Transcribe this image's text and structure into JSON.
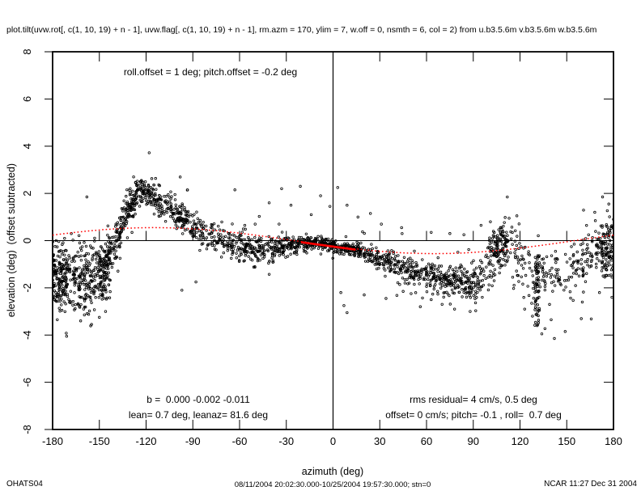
{
  "window": {
    "background": "#ffffff"
  },
  "footer": {
    "project_id": "OHATS04",
    "time_range": "08/11/2004 20:02:30.000-10/25/2004 19:57:30.000; stn=0",
    "credit": "NCAR 11:27 Dec 31 2004"
  },
  "chart_data": {
    "type": "scatter",
    "title": "plot.tilt(uvw.rot[, c(1, 10, 19) + n - 1], uvw.flag[, c(1, 10, 19) + n - 1], rm.azm = 170, ylim = 7, w.off = 0, nsmth = 6, col = 2) from u.b3.5.6m v.b3.5.6m w.b3.5.6m",
    "xlabel": "azimuth (deg)",
    "ylabel": "elevation (deg)  (offset subtracted)",
    "xlim": [
      -180,
      180
    ],
    "ylim": [
      -8,
      8
    ],
    "xticks": [
      -180,
      -150,
      -120,
      -90,
      -60,
      -30,
      0,
      30,
      60,
      90,
      120,
      150,
      180
    ],
    "yticks": [
      -8,
      -6,
      -4,
      -2,
      0,
      2,
      4,
      6,
      8
    ],
    "grid": false,
    "zero_axis_lines": true,
    "zero_axis_tick_every_deg": 30,
    "annotations": {
      "top": "roll.offset = 1 deg; pitch.offset = -0.2 deg",
      "bottom_left_1": "b =  0.000 -0.002 -0.011",
      "bottom_left_2": "lean= 0.7 deg, leanaz= 81.6 deg",
      "bottom_right_1": "rms residual= 4 cm/s, 0.5 deg",
      "bottom_right_2": "offset= 0 cm/s; pitch= -0.1 , roll=  0.7 deg"
    },
    "colors": {
      "points": "#000000",
      "fit": "#ff0000",
      "axes": "#000000"
    },
    "fit_curve": {
      "shape": "sinusoid",
      "amplitude": -0.55,
      "phase_deg": 25,
      "style": "dotted"
    },
    "fit_segment": {
      "x": [
        -20,
        14
      ],
      "y": [
        -0.07,
        -0.38
      ],
      "style": "solid-thick"
    },
    "scatter_model": {
      "seed": 7,
      "n_points": 2300,
      "halo_fraction": 0.05,
      "halo_scale": 2.2,
      "x": [
        -180,
        -172,
        -164,
        -156,
        -150,
        -145,
        -140,
        -135,
        -130,
        -126,
        -122,
        -118,
        -114,
        -108,
        -100,
        -92,
        -84,
        -76,
        -68,
        -60,
        -52,
        -44,
        -36,
        -28,
        -20,
        -12,
        -4,
        4,
        12,
        20,
        28,
        36,
        44,
        52,
        60,
        68,
        76,
        84,
        92,
        98,
        104,
        110,
        116,
        122,
        128,
        134,
        140,
        146,
        152,
        158,
        164,
        170,
        175,
        180
      ],
      "mean": [
        -1.25,
        -1.7,
        -1.45,
        -1.6,
        -1.2,
        -0.75,
        -0.15,
        0.7,
        1.5,
        1.9,
        2.2,
        2.0,
        1.75,
        1.5,
        1.1,
        0.7,
        0.4,
        0.2,
        0.0,
        -0.2,
        -0.35,
        -0.4,
        -0.3,
        -0.2,
        -0.12,
        -0.1,
        -0.15,
        -0.25,
        -0.35,
        -0.5,
        -0.7,
        -0.9,
        -1.1,
        -1.3,
        -1.45,
        -1.6,
        -1.7,
        -1.75,
        -1.75,
        -1.45,
        -0.6,
        -0.2,
        -0.45,
        -1.1,
        -1.6,
        -1.65,
        -1.35,
        -1.45,
        -1.35,
        -0.9,
        -0.65,
        -0.55,
        -0.4,
        -0.3
      ],
      "sigma": [
        0.75,
        0.7,
        0.75,
        0.7,
        0.6,
        0.5,
        0.45,
        0.4,
        0.35,
        0.3,
        0.3,
        0.3,
        0.3,
        0.3,
        0.3,
        0.3,
        0.3,
        0.3,
        0.32,
        0.33,
        0.3,
        0.28,
        0.25,
        0.2,
        0.15,
        0.12,
        0.12,
        0.13,
        0.15,
        0.18,
        0.22,
        0.26,
        0.3,
        0.32,
        0.35,
        0.35,
        0.35,
        0.38,
        0.42,
        0.5,
        0.5,
        0.45,
        0.5,
        0.55,
        0.6,
        0.55,
        0.5,
        0.5,
        0.55,
        0.65,
        0.7,
        0.65,
        0.6,
        0.55
      ],
      "density": [
        1.9,
        1.8,
        1.6,
        1.8,
        1.5,
        1.3,
        1.3,
        1.5,
        1.7,
        1.8,
        1.7,
        1.5,
        1.3,
        1.2,
        1.1,
        1.0,
        0.95,
        0.9,
        0.9,
        0.95,
        1.0,
        1.0,
        1.05,
        1.1,
        1.2,
        1.3,
        1.35,
        1.3,
        1.2,
        1.1,
        1.05,
        1.0,
        1.0,
        1.05,
        1.15,
        1.25,
        1.3,
        1.25,
        1.15,
        0.95,
        0.9,
        0.85,
        0.75,
        0.7,
        0.75,
        0.7,
        0.65,
        0.6,
        0.55,
        0.7,
        0.85,
        0.95,
        1.0,
        0.95
      ]
    },
    "clusters": [
      {
        "x0": 129.5,
        "x1": 132.5,
        "y0": -3.6,
        "y1": -0.5,
        "n": 55
      },
      {
        "x0": 100,
        "x1": 112,
        "y0": -0.9,
        "y1": 0.4,
        "n": 60
      },
      {
        "x0": -151,
        "x1": -143,
        "y0": -2.6,
        "y1": -0.6,
        "n": 70
      },
      {
        "x0": 172,
        "x1": 180,
        "y0": -1.6,
        "y1": 0.7,
        "n": 60
      },
      {
        "x0": -180,
        "x1": -170,
        "y0": -2.6,
        "y1": -0.4,
        "n": 60
      }
    ],
    "outliers": [
      [
        -171,
        -4.05
      ],
      [
        -177,
        -3.35
      ],
      [
        -174,
        -2.95
      ],
      [
        -162,
        -3.4
      ],
      [
        -155,
        -3.55
      ],
      [
        -150,
        -3.25
      ],
      [
        -146,
        -3.0
      ],
      [
        -118,
        3.72
      ],
      [
        -128,
        2.7
      ],
      [
        -123,
        2.55
      ],
      [
        -158,
        1.85
      ],
      [
        -168,
        0.3
      ],
      [
        -97,
        -2.1
      ],
      [
        -88,
        -1.75
      ],
      [
        -63,
        2.15
      ],
      [
        -50,
        0.7
      ],
      [
        -41,
        1.6
      ],
      [
        -33,
        2.2
      ],
      [
        -27,
        1.5
      ],
      [
        -21,
        2.3
      ],
      [
        -14,
        1.1
      ],
      [
        -8,
        1.9
      ],
      [
        -2,
        1.45
      ],
      [
        3,
        2.25
      ],
      [
        9,
        1.5
      ],
      [
        16,
        1.0
      ],
      [
        24,
        1.15
      ],
      [
        31,
        0.7
      ],
      [
        44,
        0.55
      ],
      [
        5,
        -2.2
      ],
      [
        7,
        -2.75
      ],
      [
        9,
        -3.05
      ],
      [
        20,
        -2.3
      ],
      [
        34,
        -2.45
      ],
      [
        45,
        -2.15
      ],
      [
        56,
        -2.8
      ],
      [
        63,
        -2.5
      ],
      [
        70,
        -2.7
      ],
      [
        78,
        -2.9
      ],
      [
        88,
        -3.0
      ],
      [
        63,
        0.35
      ],
      [
        75,
        0.3
      ],
      [
        84,
        0.25
      ],
      [
        95,
        0.65
      ],
      [
        101,
        0.8
      ],
      [
        108,
        0.55
      ],
      [
        113,
        0.95
      ],
      [
        118,
        1.05
      ],
      [
        123,
        -2.9
      ],
      [
        128,
        -3.2
      ],
      [
        131,
        -3.6
      ],
      [
        134,
        -3.95
      ],
      [
        140,
        -3.35
      ],
      [
        149,
        -3.85
      ],
      [
        160,
        -2.6
      ],
      [
        168,
        1.2
      ],
      [
        173,
        1.85
      ],
      [
        177,
        1.55
      ],
      [
        180,
        0.9
      ],
      [
        179,
        -2.4
      ],
      [
        171,
        -2.2
      ]
    ]
  }
}
